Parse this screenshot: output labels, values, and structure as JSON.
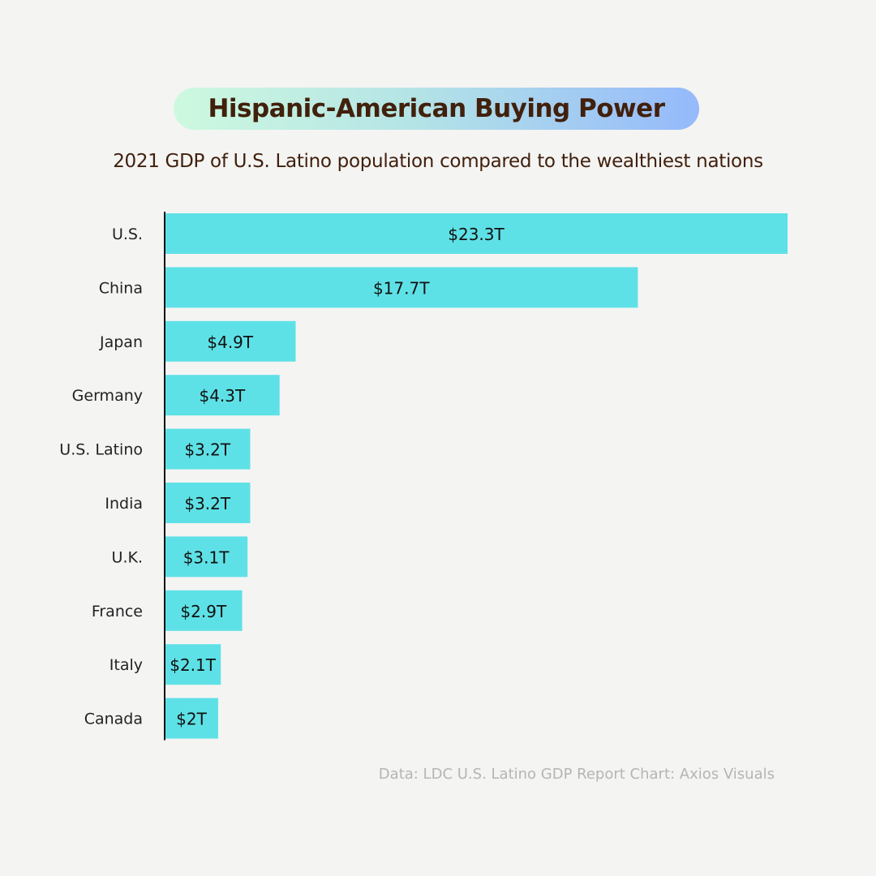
{
  "header": {
    "title": "Hispanic-American Buying Power",
    "subtitle": "2021 GDP of U.S. Latino population compared to the wealthiest nations"
  },
  "chart_data": {
    "type": "bar",
    "orientation": "horizontal",
    "categories": [
      "U.S.",
      "China",
      "Japan",
      "Germany",
      "U.S. Latino",
      "India",
      "U.K.",
      "France",
      "Italy",
      "Canada"
    ],
    "values": [
      23.3,
      17.7,
      4.9,
      4.3,
      3.2,
      3.2,
      3.1,
      2.9,
      2.1,
      2.0
    ],
    "data_labels": [
      "$23.3T",
      "$17.7T",
      "$4.9T",
      "$4.3T",
      "$3.2T",
      "$3.2T",
      "$3.1T",
      "$2.9T",
      "$2.1T",
      "$2T"
    ],
    "title": "Hispanic-American Buying Power",
    "subtitle": "2021 GDP of U.S. Latino population compared to the wealthiest nations",
    "xlabel": "",
    "ylabel": "",
    "grid": false,
    "bar_color": "#5ee1e6",
    "text_color": "#41200c"
  },
  "footer": {
    "source": "Data: LDC U.S. Latino GDP Report Chart: Axios Visuals"
  }
}
